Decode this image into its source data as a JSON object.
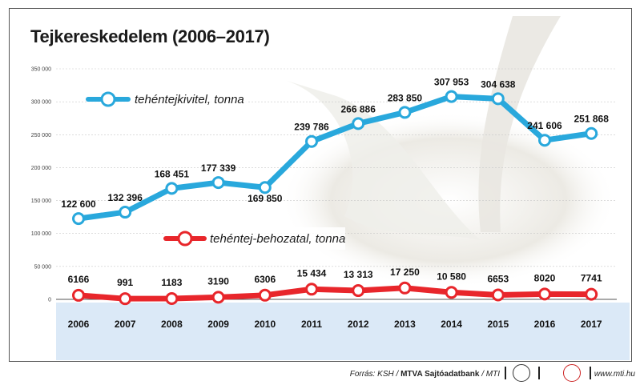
{
  "title": "Tejkereskedelem (2006–2017)",
  "footer": {
    "source_prefix": "Forrás: KSH / ",
    "source_bold": "MTVA Sajtóadatbank",
    "source_suffix": " / MTI",
    "site": "www.mti.hu"
  },
  "colors": {
    "export": "#29a8dc",
    "import": "#e8262b",
    "axis_band": "#dbe9f7"
  },
  "chart_data": {
    "type": "line",
    "x": [
      "2006",
      "2007",
      "2008",
      "2009",
      "2010",
      "2011",
      "2012",
      "2013",
      "2014",
      "2015",
      "2016",
      "2017"
    ],
    "ylim": [
      0,
      350000
    ],
    "yticks": [
      0,
      50000,
      100000,
      150000,
      200000,
      250000,
      300000,
      350000
    ],
    "ytick_labels": [
      "0",
      "50 000",
      "100 000",
      "150 000",
      "200 000",
      "250 000",
      "300 000",
      "350 000"
    ],
    "grid": true,
    "legend": "inline-left",
    "series": [
      {
        "name": "tehéntejkivitel, tonna",
        "values": [
          122600,
          132396,
          168451,
          177339,
          169850,
          239786,
          266886,
          283850,
          307953,
          304638,
          241606,
          251868
        ],
        "labels": [
          "122 600",
          "132 396",
          "168 451",
          "177 339",
          "169 850",
          "239 786",
          "266 886",
          "283 850",
          "307 953",
          "304 638",
          "241 606",
          "251 868"
        ]
      },
      {
        "name": "tehéntej-behozatal, tonna",
        "values": [
          6166,
          991,
          1183,
          3190,
          6306,
          15434,
          13313,
          17250,
          10580,
          6653,
          8020,
          7741
        ],
        "labels": [
          "6166",
          "991",
          "1183",
          "3190",
          "6306",
          "15 434",
          "13 313",
          "17 250",
          "10 580",
          "6653",
          "8020",
          "7741"
        ]
      }
    ]
  }
}
